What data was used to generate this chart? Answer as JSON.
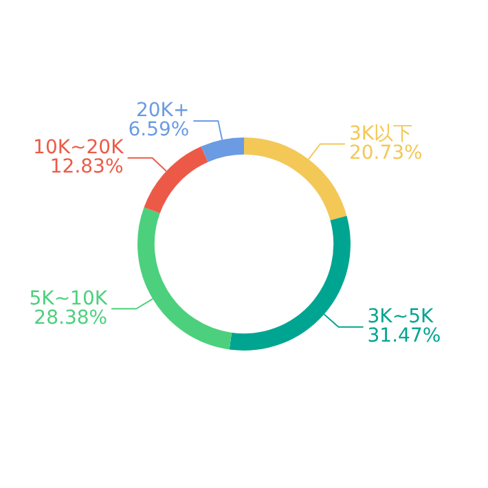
{
  "chart_data": {
    "type": "donut",
    "categories": [
      "3K以下",
      "3K~5K",
      "5K~10K",
      "10K~20K",
      "20K+"
    ],
    "values": [
      20.73,
      31.47,
      28.38,
      12.83,
      6.59
    ],
    "value_labels": [
      "20.73%",
      "31.47%",
      "28.38%",
      "12.83%",
      "6.59%"
    ],
    "colors": [
      "#f3c857",
      "#00a591",
      "#4cd07d",
      "#ec5a47",
      "#6a9be3"
    ],
    "legend": false
  }
}
